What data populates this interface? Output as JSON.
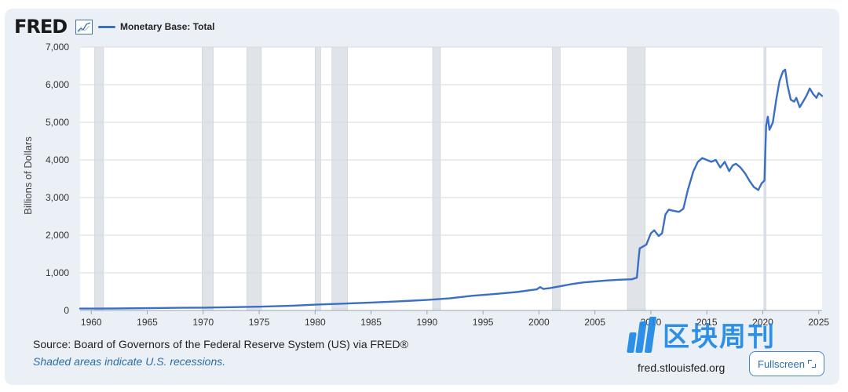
{
  "logo": {
    "text": "FRED"
  },
  "legend": {
    "series_name": "Monetary Base: Total",
    "color": "#3a6fc4"
  },
  "source_text": "Source: Board of Governors of the Federal Reserve System (US) via FRED®",
  "shading_note": "Shaded areas indicate U.S. recessions.",
  "site_url": "fred.stlouisfed.org",
  "fullscreen_label": "Fullscreen",
  "watermark": {
    "text": "区块周刊",
    "color": "#1e88e5"
  },
  "chart_data": {
    "type": "line",
    "title": "",
    "xlabel": "",
    "ylabel": "Billions of Dollars",
    "xlim": [
      1959,
      2025.3
    ],
    "ylim": [
      0,
      7000
    ],
    "x_ticks": [
      "1960",
      "1965",
      "1970",
      "1975",
      "1980",
      "1985",
      "1990",
      "1995",
      "2000",
      "2005",
      "2010",
      "2015",
      "2020",
      "2025"
    ],
    "y_ticks": [
      "0",
      "1,000",
      "2,000",
      "3,000",
      "4,000",
      "5,000",
      "6,000",
      "7,000"
    ],
    "grid": "horizontal",
    "recession_color": "#e0e3e8",
    "recessions": [
      [
        1960.3,
        1961.1
      ],
      [
        1969.9,
        1970.9
      ],
      [
        1973.9,
        1975.2
      ],
      [
        1980.0,
        1980.5
      ],
      [
        1981.5,
        1982.9
      ],
      [
        1990.5,
        1991.2
      ],
      [
        2001.2,
        2001.9
      ],
      [
        2007.9,
        2009.5
      ],
      [
        2020.1,
        2020.3
      ]
    ],
    "series": [
      {
        "name": "Monetary Base: Total",
        "points": [
          [
            1959.0,
            50
          ],
          [
            1962,
            53
          ],
          [
            1965,
            60
          ],
          [
            1968,
            70
          ],
          [
            1970,
            76
          ],
          [
            1972,
            85
          ],
          [
            1975,
            100
          ],
          [
            1978,
            128
          ],
          [
            1980,
            155
          ],
          [
            1982,
            175
          ],
          [
            1985,
            210
          ],
          [
            1988,
            250
          ],
          [
            1990,
            280
          ],
          [
            1992,
            320
          ],
          [
            1994,
            390
          ],
          [
            1996,
            435
          ],
          [
            1998,
            490
          ],
          [
            1999.8,
            560
          ],
          [
            2000.1,
            620
          ],
          [
            2000.4,
            570
          ],
          [
            2001,
            595
          ],
          [
            2002,
            650
          ],
          [
            2003,
            705
          ],
          [
            2004,
            745
          ],
          [
            2005,
            770
          ],
          [
            2006,
            795
          ],
          [
            2007,
            815
          ],
          [
            2008.3,
            830
          ],
          [
            2008.75,
            870
          ],
          [
            2008.9,
            1350
          ],
          [
            2009.0,
            1650
          ],
          [
            2009.3,
            1700
          ],
          [
            2009.6,
            1750
          ],
          [
            2010.0,
            2050
          ],
          [
            2010.3,
            2130
          ],
          [
            2010.7,
            1980
          ],
          [
            2011.0,
            2050
          ],
          [
            2011.3,
            2550
          ],
          [
            2011.6,
            2680
          ],
          [
            2012.0,
            2650
          ],
          [
            2012.5,
            2620
          ],
          [
            2012.9,
            2700
          ],
          [
            2013.3,
            3200
          ],
          [
            2013.8,
            3700
          ],
          [
            2014.2,
            3950
          ],
          [
            2014.6,
            4050
          ],
          [
            2015.0,
            4000
          ],
          [
            2015.4,
            3950
          ],
          [
            2015.8,
            4000
          ],
          [
            2016.2,
            3800
          ],
          [
            2016.6,
            3950
          ],
          [
            2017.0,
            3700
          ],
          [
            2017.3,
            3850
          ],
          [
            2017.6,
            3900
          ],
          [
            2018.0,
            3800
          ],
          [
            2018.4,
            3650
          ],
          [
            2018.8,
            3450
          ],
          [
            2019.2,
            3280
          ],
          [
            2019.6,
            3200
          ],
          [
            2019.9,
            3380
          ],
          [
            2020.15,
            3450
          ],
          [
            2020.3,
            4900
          ],
          [
            2020.45,
            5150
          ],
          [
            2020.6,
            4800
          ],
          [
            2020.9,
            5000
          ],
          [
            2021.2,
            5600
          ],
          [
            2021.5,
            6100
          ],
          [
            2021.8,
            6350
          ],
          [
            2022.0,
            6400
          ],
          [
            2022.2,
            6000
          ],
          [
            2022.5,
            5600
          ],
          [
            2022.8,
            5550
          ],
          [
            2023.0,
            5650
          ],
          [
            2023.3,
            5400
          ],
          [
            2023.6,
            5550
          ],
          [
            2023.9,
            5700
          ],
          [
            2024.2,
            5900
          ],
          [
            2024.5,
            5750
          ],
          [
            2024.8,
            5650
          ],
          [
            2025.0,
            5780
          ],
          [
            2025.3,
            5700
          ]
        ]
      }
    ]
  }
}
